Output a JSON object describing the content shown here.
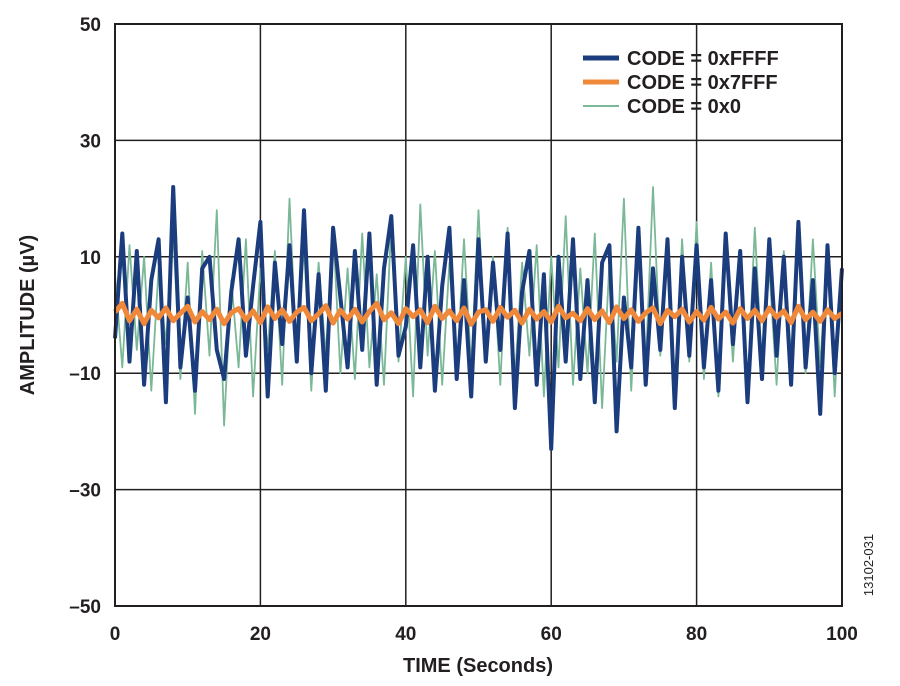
{
  "chart_data": {
    "type": "line",
    "title": "",
    "xlabel": "TIME (Seconds)",
    "ylabel": "AMPLITUDE (µV)",
    "xlim": [
      0,
      100
    ],
    "ylim": [
      -50,
      50
    ],
    "x_ticks": [
      0,
      20,
      40,
      60,
      80,
      100
    ],
    "x_tick_labels": [
      "0",
      "20",
      "40",
      "60",
      "80",
      "100"
    ],
    "y_ticks": [
      50,
      30,
      10,
      -10,
      -30,
      -50
    ],
    "y_tick_labels": [
      "50",
      "30",
      "10",
      "–10",
      "–30",
      "–50"
    ],
    "grid": true,
    "legend_position": "top-right",
    "figure_id": "13102-031",
    "series": [
      {
        "name": "CODE = 0xFFFF",
        "color": "#1b3d7e",
        "x": [
          0,
          1,
          2,
          3,
          4,
          5,
          6,
          7,
          8,
          9,
          10,
          11,
          12,
          13,
          14,
          15,
          16,
          17,
          18,
          19,
          20,
          21,
          22,
          23,
          24,
          25,
          26,
          27,
          28,
          29,
          30,
          31,
          32,
          33,
          34,
          35,
          36,
          37,
          38,
          39,
          40,
          41,
          42,
          43,
          44,
          45,
          46,
          47,
          48,
          49,
          50,
          51,
          52,
          53,
          54,
          55,
          56,
          57,
          58,
          59,
          60,
          61,
          62,
          63,
          64,
          65,
          66,
          67,
          68,
          69,
          70,
          71,
          72,
          73,
          74,
          75,
          76,
          77,
          78,
          79,
          80,
          81,
          82,
          83,
          84,
          85,
          86,
          87,
          88,
          89,
          90,
          91,
          92,
          93,
          94,
          95,
          96,
          97,
          98,
          99,
          100
        ],
        "y": [
          -4,
          14,
          -8,
          11,
          -12,
          6,
          13,
          -15,
          22,
          -9,
          3,
          -13,
          8,
          10,
          -6,
          -11,
          4,
          13,
          -7,
          5,
          16,
          -14,
          9,
          -5,
          12,
          -8,
          18,
          -10,
          7,
          -13,
          15,
          3,
          -9,
          11,
          -6,
          14,
          -12,
          8,
          17,
          -7,
          -2,
          12,
          -9,
          10,
          -13,
          5,
          15,
          -11,
          6,
          -14,
          13,
          -8,
          9,
          -6,
          14,
          -16,
          4,
          11,
          -12,
          7,
          -23,
          10,
          -8,
          13,
          -11,
          6,
          -15,
          9,
          12,
          -20,
          3,
          -9,
          15,
          -12,
          8,
          -6,
          13,
          -16,
          10,
          -7,
          12,
          -9,
          6,
          -13,
          14,
          -5,
          11,
          -15,
          8,
          -11,
          13,
          -7,
          10,
          -12,
          16,
          -9,
          6,
          -17,
          12,
          -10,
          8
        ]
      },
      {
        "name": "CODE = 0x7FFF",
        "color": "#f0883a",
        "x": [
          0,
          1,
          2,
          3,
          4,
          5,
          6,
          7,
          8,
          9,
          10,
          11,
          12,
          13,
          14,
          15,
          16,
          17,
          18,
          19,
          20,
          21,
          22,
          23,
          24,
          25,
          26,
          27,
          28,
          29,
          30,
          31,
          32,
          33,
          34,
          35,
          36,
          37,
          38,
          39,
          40,
          41,
          42,
          43,
          44,
          45,
          46,
          47,
          48,
          49,
          50,
          51,
          52,
          53,
          54,
          55,
          56,
          57,
          58,
          59,
          60,
          61,
          62,
          63,
          64,
          65,
          66,
          67,
          68,
          69,
          70,
          71,
          72,
          73,
          74,
          75,
          76,
          77,
          78,
          79,
          80,
          81,
          82,
          83,
          84,
          85,
          86,
          87,
          88,
          89,
          90,
          91,
          92,
          93,
          94,
          95,
          96,
          97,
          98,
          99,
          100
        ],
        "y": [
          0.5,
          2,
          -1,
          1,
          -1.5,
          0.8,
          -0.5,
          1.2,
          -1,
          0.3,
          1.5,
          -1.2,
          0.6,
          -0.8,
          1,
          -1.5,
          0.4,
          1.1,
          -0.9,
          0.7,
          -1.3,
          1.4,
          -0.6,
          0.9,
          -1.1,
          0.5,
          1.3,
          -1,
          0.2,
          1.6,
          -1.4,
          0.8,
          -0.7,
          1,
          -1.2,
          0.6,
          2,
          -0.8,
          0.4,
          -1.5,
          1.1,
          -0.3,
          0.9,
          -1.3,
          1.5,
          -0.6,
          0.7,
          -1,
          1.2,
          -1.6,
          0.5,
          0.9,
          -1.1,
          1.3,
          -0.4,
          0.8,
          -1.4,
          1,
          -0.7,
          0.6,
          -1.2,
          1.5,
          -0.5,
          0.3,
          -1,
          1.1,
          -0.8,
          0.7,
          -1.3,
          1.4,
          -0.6,
          0.9,
          -1.1,
          0.4,
          1.2,
          -1.5,
          0.8,
          -0.3,
          1,
          -1.2,
          0.6,
          -0.9,
          1.3,
          -0.7,
          0.5,
          -1.4,
          1.1,
          -0.6,
          0.8,
          -1,
          1.2,
          -0.4,
          0.7,
          -1.3,
          1.5,
          -0.8,
          0.5,
          -1.1,
          0.9,
          -0.6,
          0.3
        ]
      },
      {
        "name": "CODE = 0x0",
        "color": "#7bb897",
        "x": [
          0,
          1,
          2,
          3,
          4,
          5,
          6,
          7,
          8,
          9,
          10,
          11,
          12,
          13,
          14,
          15,
          16,
          17,
          18,
          19,
          20,
          21,
          22,
          23,
          24,
          25,
          26,
          27,
          28,
          29,
          30,
          31,
          32,
          33,
          34,
          35,
          36,
          37,
          38,
          39,
          40,
          41,
          42,
          43,
          44,
          45,
          46,
          47,
          48,
          49,
          50,
          51,
          52,
          53,
          54,
          55,
          56,
          57,
          58,
          59,
          60,
          61,
          62,
          63,
          64,
          65,
          66,
          67,
          68,
          69,
          70,
          71,
          72,
          73,
          74,
          75,
          76,
          77,
          78,
          79,
          80,
          81,
          82,
          83,
          84,
          85,
          86,
          87,
          88,
          89,
          90,
          91,
          92,
          93,
          94,
          95,
          96,
          97,
          98,
          99,
          100
        ],
        "y": [
          7,
          -9,
          12,
          -6,
          10,
          -13,
          8,
          -5,
          14,
          -11,
          9,
          -17,
          11,
          -7,
          18,
          -19,
          6,
          -9,
          13,
          -14,
          8,
          -6,
          11,
          -12,
          20,
          -8,
          12,
          -13,
          9,
          -7,
          15,
          -10,
          8,
          -11,
          14,
          -9,
          7,
          -12,
          16,
          -8,
          10,
          -14,
          19,
          -7,
          11,
          -12,
          9,
          -10,
          13,
          -9,
          18,
          -8,
          10,
          -12,
          15,
          -11,
          9,
          -7,
          12,
          -14,
          10,
          -9,
          17,
          -12,
          8,
          -10,
          14,
          -16,
          9,
          -8,
          20,
          -13,
          11,
          -9,
          22,
          -7,
          10,
          -12,
          13,
          -8,
          16,
          -11,
          9,
          -14,
          12,
          -8,
          10,
          -13,
          15,
          -9,
          8,
          -12,
          11,
          -7,
          14,
          -10,
          13,
          -9,
          12,
          -14,
          9
        ]
      }
    ]
  }
}
